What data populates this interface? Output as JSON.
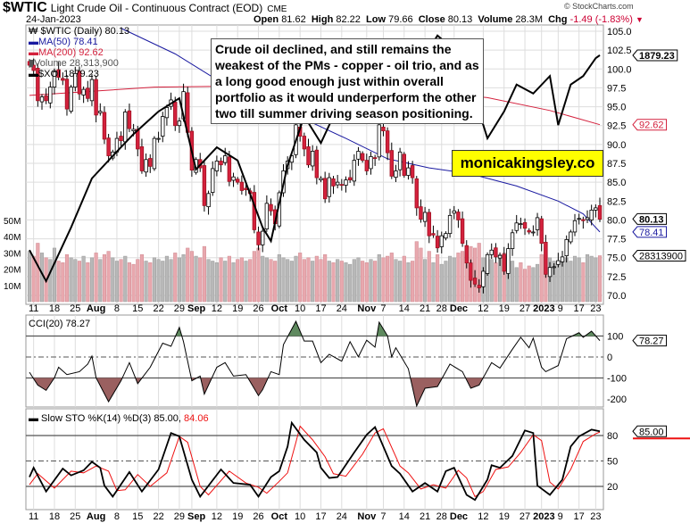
{
  "header": {
    "symbol": "$WTIC",
    "description": "Light Crude Oil - Continuous Contract (EOD)",
    "exchange": "CME",
    "date": "24-Jan-2023",
    "copyright": "© StockCharts.com",
    "open_label": "Open",
    "open": "81.62",
    "high_label": "High",
    "high": "82.22",
    "low_label": "Low",
    "low": "79.66",
    "close_label": "Close",
    "close": "80.13",
    "volume_label": "Volume",
    "volume": "28.3M",
    "chg_label": "Chg",
    "chg": "-1.49 (-1.83%)",
    "chg_color": "#cc0033"
  },
  "legend": {
    "price": "$WTIC (Daily) 80.13",
    "ma50": "MA(50) 78.41",
    "ma200": "MA(200) 92.62",
    "volume": "Volume 28,313,900",
    "xoi": "$XOI 1879.23"
  },
  "annotation": "Crude oil declined, and still remains the weakest of the PMs - copper - oil trio, and as a long good enough just within overall portfolio as it would underperform the other two till summer driving season positioning.",
  "website": "monicakingsley.co",
  "colors": {
    "up": "#ffffff",
    "down": "#d4213d",
    "ma50": "#1a1aa0",
    "ma200": "#d4213d",
    "volume_up": "#b8b8b8",
    "volume_down": "#e8a8ae",
    "cci_pos": "#5f8a5f",
    "cci_neg": "#9a6060",
    "sto_k": "#000000",
    "sto_d": "#ee1111"
  },
  "date_ticks": [
    {
      "label": "11",
      "i": 1
    },
    {
      "label": "18",
      "i": 6
    },
    {
      "label": "25",
      "i": 11
    },
    {
      "label": "Aug",
      "i": 16,
      "bold": true
    },
    {
      "label": "8",
      "i": 21
    },
    {
      "label": "15",
      "i": 26
    },
    {
      "label": "22",
      "i": 31
    },
    {
      "label": "29",
      "i": 36
    },
    {
      "label": "Sep",
      "i": 39,
      "bold": true
    },
    {
      "label": "12",
      "i": 45
    },
    {
      "label": "19",
      "i": 50
    },
    {
      "label": "26",
      "i": 55
    },
    {
      "label": "Oct",
      "i": 60,
      "bold": true
    },
    {
      "label": "10",
      "i": 65
    },
    {
      "label": "17",
      "i": 70
    },
    {
      "label": "24",
      "i": 75
    },
    {
      "label": "Nov",
      "i": 81,
      "bold": true
    },
    {
      "label": "7",
      "i": 85
    },
    {
      "label": "14",
      "i": 90
    },
    {
      "label": "21",
      "i": 95
    },
    {
      "label": "28",
      "i": 99
    },
    {
      "label": "Dec",
      "i": 102,
      "bold": true
    },
    {
      "label": "12",
      "i": 109
    },
    {
      "label": "19",
      "i": 114
    },
    {
      "label": "27",
      "i": 119
    },
    {
      "label": "2023",
      "i": 123,
      "bold": true
    },
    {
      "label": "9",
      "i": 127
    },
    {
      "label": "17",
      "i": 132
    },
    {
      "label": "23",
      "i": 136
    }
  ],
  "chart_data": [
    {
      "type": "candlestick",
      "panel": "price",
      "yticks": [
        "105.0",
        "102.5",
        "100.0",
        "97.5",
        "95.0",
        "92.5",
        "90.0",
        "87.5",
        "85.0",
        "82.5",
        "80.0",
        "77.5",
        "75.0",
        "72.5",
        "70.0"
      ],
      "ylim": [
        69,
        106
      ],
      "volume_ticks": [
        "50M",
        "40M",
        "30M",
        "20M",
        "10M"
      ],
      "callouts": {
        "xoi": "1879.23",
        "ma200": "92.62",
        "close": "80.13",
        "ma50": "78.41",
        "volume": "28313900"
      },
      "closes": [
        100.5,
        99.8,
        95.8,
        96.3,
        95.8,
        97.6,
        99.6,
        98.9,
        98.5,
        94.7,
        97.6,
        99.4,
        96.7,
        97.3,
        96.1,
        98.6,
        93.9,
        94.4,
        90.7,
        88.5,
        89.0,
        90.8,
        90.5,
        94.3,
        92.1,
        92.0,
        89.4,
        86.5,
        88.0,
        87.1,
        90.8,
        90.8,
        93.7,
        94.9,
        95.9,
        92.5,
        93.1,
        97.0,
        91.6,
        86.6,
        88.0,
        86.9,
        81.9,
        83.5,
        86.8,
        87.8,
        87.3,
        88.5,
        85.1,
        85.7,
        85.0,
        83.9,
        84.0,
        83.5,
        78.7,
        76.7,
        78.5,
        82.2,
        81.2,
        79.5,
        83.6,
        86.5,
        87.8,
        88.5,
        92.6,
        91.1,
        89.4,
        87.3,
        89.1,
        85.6,
        85.5,
        82.8,
        85.6,
        84.5,
        85.0,
        84.6,
        85.3,
        85.3,
        87.9,
        89.1,
        87.9,
        86.5,
        88.4,
        88.2,
        92.6,
        91.8,
        88.9,
        85.8,
        86.5,
        89.0,
        85.9,
        86.9,
        85.6,
        81.6,
        80.1,
        81.0,
        77.9,
        78.0,
        76.3,
        77.9,
        78.2,
        80.6,
        81.2,
        80.0,
        76.9,
        74.3,
        72.0,
        71.5,
        71.0,
        73.2,
        75.4,
        76.0,
        75.1,
        75.3,
        73.2,
        76.2,
        78.3,
        79.6,
        79.5,
        78.9,
        78.4,
        78.4,
        80.3,
        76.9,
        72.8,
        73.7,
        73.8,
        74.6,
        75.1,
        77.4,
        78.4,
        79.9,
        80.2,
        79.9,
        80.3,
        81.3,
        81.6,
        80.1
      ],
      "volumes_m": [
        31,
        28,
        36,
        30,
        27,
        26,
        33,
        25,
        24,
        29,
        27,
        26,
        25,
        28,
        24,
        27,
        30,
        26,
        29,
        31,
        27,
        25,
        26,
        28,
        24,
        23,
        26,
        29,
        25,
        24,
        27,
        26,
        25,
        28,
        26,
        30,
        27,
        29,
        33,
        31,
        28,
        27,
        34,
        26,
        25,
        24,
        27,
        25,
        28,
        24,
        26,
        27,
        25,
        26,
        31,
        33,
        28,
        27,
        26,
        25,
        29,
        27,
        26,
        25,
        28,
        30,
        26,
        27,
        25,
        28,
        26,
        29,
        25,
        24,
        26,
        25,
        24,
        23,
        26,
        27,
        25,
        24,
        26,
        25,
        29,
        27,
        28,
        30,
        26,
        25,
        28,
        24,
        25,
        37,
        33,
        26,
        31,
        24,
        29,
        23,
        25,
        28,
        27,
        30,
        31,
        29,
        34,
        33,
        36,
        27,
        28,
        26,
        24,
        29,
        30,
        28,
        25,
        21,
        24,
        20,
        22,
        21,
        23,
        29,
        34,
        27,
        25,
        24,
        26,
        27,
        25,
        28,
        27,
        24,
        29,
        28,
        27,
        28.3
      ],
      "ma50": [
        [
          22,
          105.4
        ],
        [
          35,
          102.0
        ],
        [
          47,
          97.9
        ],
        [
          62,
          94.4
        ],
        [
          76,
          90.8
        ],
        [
          86,
          88.1
        ],
        [
          96,
          86.9
        ],
        [
          106,
          86.1
        ],
        [
          117,
          84.5
        ],
        [
          127,
          82.5
        ],
        [
          133,
          80.8
        ],
        [
          137,
          78.41
        ]
      ],
      "ma200": [
        [
          0,
          96.5
        ],
        [
          30,
          97.6
        ],
        [
          60,
          97.8
        ],
        [
          90,
          97.3
        ],
        [
          110,
          96.2
        ],
        [
          125,
          94.5
        ],
        [
          137,
          92.62
        ]
      ],
      "xoi": [
        [
          0,
          1466
        ],
        [
          4,
          1400
        ],
        [
          10,
          1514
        ],
        [
          15,
          1618
        ],
        [
          21,
          1675
        ],
        [
          25,
          1712
        ],
        [
          31,
          1760
        ],
        [
          36,
          1788
        ],
        [
          40,
          1637
        ],
        [
          45,
          1684
        ],
        [
          50,
          1656
        ],
        [
          56,
          1514
        ],
        [
          58,
          1485
        ],
        [
          62,
          1646
        ],
        [
          66,
          1750
        ],
        [
          70,
          1693
        ],
        [
          74,
          1769
        ],
        [
          80,
          1826
        ],
        [
          86,
          1817
        ],
        [
          90,
          1788
        ],
        [
          94,
          1864
        ],
        [
          98,
          1921
        ],
        [
          103,
          1883
        ],
        [
          107,
          1788
        ],
        [
          110,
          1703
        ],
        [
          114,
          1760
        ],
        [
          117,
          1817
        ],
        [
          121,
          1798
        ],
        [
          125,
          1835
        ],
        [
          127,
          1731
        ],
        [
          130,
          1817
        ],
        [
          133,
          1835
        ],
        [
          136,
          1873
        ],
        [
          137,
          1879.23
        ]
      ]
    },
    {
      "type": "line",
      "panel": "cci",
      "legend": "CCI(20) 78.27",
      "yticks": [
        "100",
        "0",
        "-100",
        "-200"
      ],
      "callout": "78.27",
      "levels": [
        100,
        -100
      ],
      "values": [
        [
          0,
          -73
        ],
        [
          2,
          -134
        ],
        [
          4,
          -159
        ],
        [
          6,
          -99
        ],
        [
          7,
          -49
        ],
        [
          9,
          -84
        ],
        [
          12,
          -70
        ],
        [
          14,
          -34
        ],
        [
          15,
          4
        ],
        [
          16,
          -99
        ],
        [
          19,
          -213
        ],
        [
          22,
          -113
        ],
        [
          24,
          -27
        ],
        [
          26,
          -127
        ],
        [
          29,
          -49
        ],
        [
          32,
          66
        ],
        [
          34,
          51
        ],
        [
          36,
          141
        ],
        [
          37,
          73
        ],
        [
          39,
          -113
        ],
        [
          41,
          -91
        ],
        [
          42,
          -177
        ],
        [
          45,
          -49
        ],
        [
          47,
          -27
        ],
        [
          49,
          -91
        ],
        [
          52,
          -84
        ],
        [
          55,
          -184
        ],
        [
          56,
          -156
        ],
        [
          58,
          -70
        ],
        [
          60,
          -84
        ],
        [
          61,
          59
        ],
        [
          64,
          170
        ],
        [
          66,
          76
        ],
        [
          68,
          76
        ],
        [
          70,
          -27
        ],
        [
          72,
          13
        ],
        [
          75,
          -20
        ],
        [
          77,
          73
        ],
        [
          79,
          1
        ],
        [
          81,
          80
        ],
        [
          83,
          47
        ],
        [
          84,
          166
        ],
        [
          86,
          101
        ],
        [
          87,
          1
        ],
        [
          88,
          44
        ],
        [
          91,
          -56
        ],
        [
          93,
          -234
        ],
        [
          95,
          -149
        ],
        [
          98,
          -141
        ],
        [
          101,
          -34
        ],
        [
          104,
          -70
        ],
        [
          106,
          -149
        ],
        [
          108,
          -134
        ],
        [
          111,
          -27
        ],
        [
          113,
          -53
        ],
        [
          116,
          37
        ],
        [
          118,
          94
        ],
        [
          120,
          44
        ],
        [
          121,
          90
        ],
        [
          123,
          -49
        ],
        [
          124,
          -70
        ],
        [
          127,
          -41
        ],
        [
          129,
          87
        ],
        [
          132,
          116
        ],
        [
          133,
          94
        ],
        [
          135,
          123
        ],
        [
          137,
          78.27
        ]
      ]
    },
    {
      "type": "line",
      "panel": "sto",
      "legend_k": "Slow STO %K(14) %D(3) 85.00,",
      "legend_d": "84.06",
      "yticks": [
        "80",
        "50",
        "20"
      ],
      "callout": "85.00",
      "levels": [
        80,
        20
      ],
      "k": [
        [
          0,
          31
        ],
        [
          1,
          42
        ],
        [
          4,
          14
        ],
        [
          8,
          41
        ],
        [
          10,
          33
        ],
        [
          13,
          39
        ],
        [
          15,
          49
        ],
        [
          17,
          42
        ],
        [
          18,
          21
        ],
        [
          20,
          8
        ],
        [
          24,
          37
        ],
        [
          27,
          14
        ],
        [
          31,
          40
        ],
        [
          34,
          83
        ],
        [
          36,
          79
        ],
        [
          39,
          28
        ],
        [
          41,
          8
        ],
        [
          46,
          40
        ],
        [
          49,
          24
        ],
        [
          53,
          22
        ],
        [
          55,
          8
        ],
        [
          58,
          31
        ],
        [
          60,
          38
        ],
        [
          62,
          67
        ],
        [
          63,
          95
        ],
        [
          66,
          75
        ],
        [
          69,
          60
        ],
        [
          70,
          42
        ],
        [
          72,
          30
        ],
        [
          74,
          31
        ],
        [
          78,
          60
        ],
        [
          81,
          81
        ],
        [
          83,
          90
        ],
        [
          87,
          44
        ],
        [
          89,
          35
        ],
        [
          92,
          14
        ],
        [
          95,
          24
        ],
        [
          98,
          14
        ],
        [
          100,
          38
        ],
        [
          102,
          42
        ],
        [
          105,
          10
        ],
        [
          107,
          4
        ],
        [
          110,
          28
        ],
        [
          111,
          45
        ],
        [
          113,
          42
        ],
        [
          116,
          56
        ],
        [
          119,
          86
        ],
        [
          121,
          83
        ],
        [
          122,
          21
        ],
        [
          125,
          10
        ],
        [
          128,
          28
        ],
        [
          130,
          67
        ],
        [
          132,
          79
        ],
        [
          135,
          87
        ],
        [
          137,
          85
        ]
      ],
      "d": [
        [
          0,
          22
        ],
        [
          2,
          35
        ],
        [
          6,
          18
        ],
        [
          10,
          38
        ],
        [
          13,
          36
        ],
        [
          16,
          44
        ],
        [
          19,
          38
        ],
        [
          21,
          15
        ],
        [
          23,
          16
        ],
        [
          26,
          34
        ],
        [
          29,
          20
        ],
        [
          33,
          36
        ],
        [
          36,
          79
        ],
        [
          38,
          72
        ],
        [
          41,
          20
        ],
        [
          43,
          10
        ],
        [
          48,
          38
        ],
        [
          52,
          24
        ],
        [
          55,
          19
        ],
        [
          57,
          12
        ],
        [
          60,
          26
        ],
        [
          62,
          36
        ],
        [
          64,
          72
        ],
        [
          65,
          91
        ],
        [
          68,
          75
        ],
        [
          71,
          55
        ],
        [
          73,
          35
        ],
        [
          76,
          32
        ],
        [
          80,
          58
        ],
        [
          83,
          83
        ],
        [
          85,
          88
        ],
        [
          89,
          44
        ],
        [
          91,
          36
        ],
        [
          94,
          17
        ],
        [
          97,
          22
        ],
        [
          100,
          18
        ],
        [
          103,
          39
        ],
        [
          105,
          30
        ],
        [
          107,
          8
        ],
        [
          109,
          14
        ],
        [
          112,
          40
        ],
        [
          115,
          43
        ],
        [
          118,
          60
        ],
        [
          121,
          81
        ],
        [
          123,
          74
        ],
        [
          125,
          25
        ],
        [
          127,
          17
        ],
        [
          130,
          40
        ],
        [
          133,
          73
        ],
        [
          136,
          82
        ],
        [
          137,
          84.06
        ]
      ]
    }
  ]
}
